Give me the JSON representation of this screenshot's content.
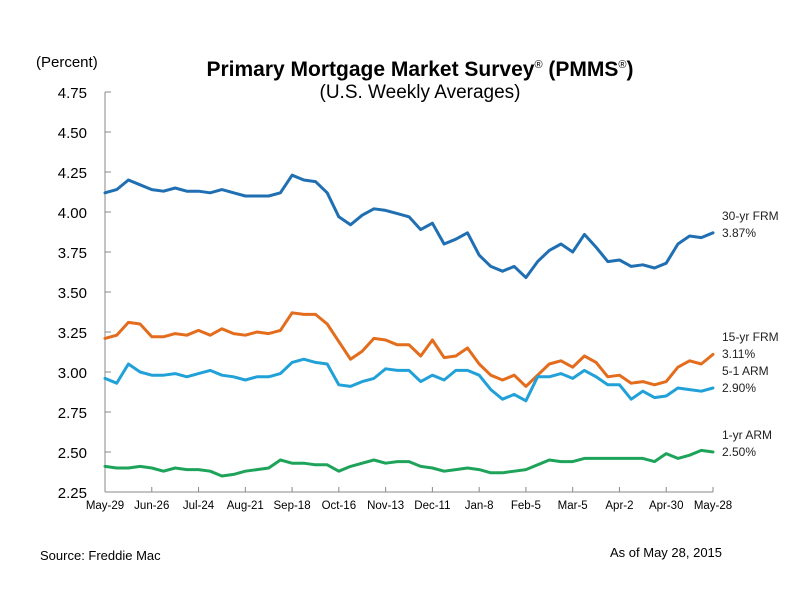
{
  "chart_data": {
    "type": "line",
    "title": "Primary Mortgage Market Survey® (PMMS®)",
    "title_parts": {
      "main": "Primary Mortgage Market Survey",
      "reg1": "®",
      "mid": " (PMMS",
      "reg2": "®",
      "end": ")"
    },
    "subtitle": "(U.S. Weekly Averages)",
    "ylabel": "(Percent)",
    "xlabel": "",
    "ylim": [
      2.25,
      4.75
    ],
    "yticks": [
      "2.25",
      "2.50",
      "2.75",
      "3.00",
      "3.25",
      "3.50",
      "3.75",
      "4.00",
      "4.25",
      "4.50",
      "4.75"
    ],
    "xtick_labels": [
      "May-29",
      "Jun-26",
      "Jul-24",
      "Aug-21",
      "Sep-18",
      "Oct-16",
      "Nov-13",
      "Dec-11",
      "Jan-8",
      "Feb-5",
      "Mar-5",
      "Apr-2",
      "Apr-30",
      "May-28"
    ],
    "x_weeks": 53,
    "grid": false,
    "legend": "right-end labels",
    "series": [
      {
        "name": "30-yr FRM",
        "end_label": "3.87%",
        "color": "#1f6fb2",
        "values": [
          4.12,
          4.14,
          4.2,
          4.17,
          4.14,
          4.13,
          4.15,
          4.13,
          4.13,
          4.12,
          4.14,
          4.12,
          4.1,
          4.1,
          4.1,
          4.12,
          4.23,
          4.2,
          4.19,
          4.12,
          3.97,
          3.92,
          3.98,
          4.02,
          4.01,
          3.99,
          3.97,
          3.89,
          3.93,
          3.8,
          3.83,
          3.87,
          3.73,
          3.66,
          3.63,
          3.66,
          3.59,
          3.69,
          3.76,
          3.8,
          3.75,
          3.86,
          3.78,
          3.69,
          3.7,
          3.66,
          3.67,
          3.65,
          3.68,
          3.8,
          3.85,
          3.84,
          3.87
        ]
      },
      {
        "name": "15-yr FRM",
        "end_label": "3.11%",
        "color": "#e36c1d",
        "values": [
          3.21,
          3.23,
          3.31,
          3.3,
          3.22,
          3.22,
          3.24,
          3.23,
          3.26,
          3.23,
          3.27,
          3.24,
          3.23,
          3.25,
          3.24,
          3.26,
          3.37,
          3.36,
          3.36,
          3.3,
          3.19,
          3.08,
          3.13,
          3.21,
          3.2,
          3.17,
          3.17,
          3.1,
          3.2,
          3.09,
          3.1,
          3.15,
          3.05,
          2.98,
          2.95,
          2.98,
          2.91,
          2.98,
          3.05,
          3.07,
          3.03,
          3.1,
          3.06,
          2.97,
          2.98,
          2.93,
          2.94,
          2.92,
          2.94,
          3.03,
          3.07,
          3.05,
          3.11
        ]
      },
      {
        "name": "5-1 ARM",
        "end_label": "2.90%",
        "color": "#21a1d8",
        "values": [
          2.96,
          2.93,
          3.05,
          3.0,
          2.98,
          2.98,
          2.99,
          2.97,
          2.99,
          3.01,
          2.98,
          2.97,
          2.95,
          2.97,
          2.97,
          2.99,
          3.06,
          3.08,
          3.06,
          3.05,
          2.92,
          2.91,
          2.94,
          2.96,
          3.02,
          3.01,
          3.01,
          2.94,
          2.98,
          2.95,
          3.01,
          3.01,
          2.98,
          2.89,
          2.83,
          2.86,
          2.82,
          2.97,
          2.97,
          2.99,
          2.96,
          3.01,
          2.97,
          2.92,
          2.92,
          2.83,
          2.88,
          2.84,
          2.85,
          2.9,
          2.89,
          2.88,
          2.9
        ]
      },
      {
        "name": "1-yr ARM",
        "end_label": "2.50%",
        "color": "#1ea35a",
        "values": [
          2.41,
          2.4,
          2.4,
          2.41,
          2.4,
          2.38,
          2.4,
          2.39,
          2.39,
          2.38,
          2.35,
          2.36,
          2.38,
          2.39,
          2.4,
          2.45,
          2.43,
          2.43,
          2.42,
          2.42,
          2.38,
          2.41,
          2.43,
          2.45,
          2.43,
          2.44,
          2.44,
          2.41,
          2.4,
          2.38,
          2.39,
          2.4,
          2.39,
          2.37,
          2.37,
          2.38,
          2.39,
          2.42,
          2.45,
          2.44,
          2.44,
          2.46,
          2.46,
          2.46,
          2.46,
          2.46,
          2.46,
          2.44,
          2.49,
          2.46,
          2.48,
          2.51,
          2.5
        ]
      }
    ]
  },
  "footer": {
    "source": "Source: Freddie Mac",
    "as_of": "As of May 28, 2015"
  }
}
